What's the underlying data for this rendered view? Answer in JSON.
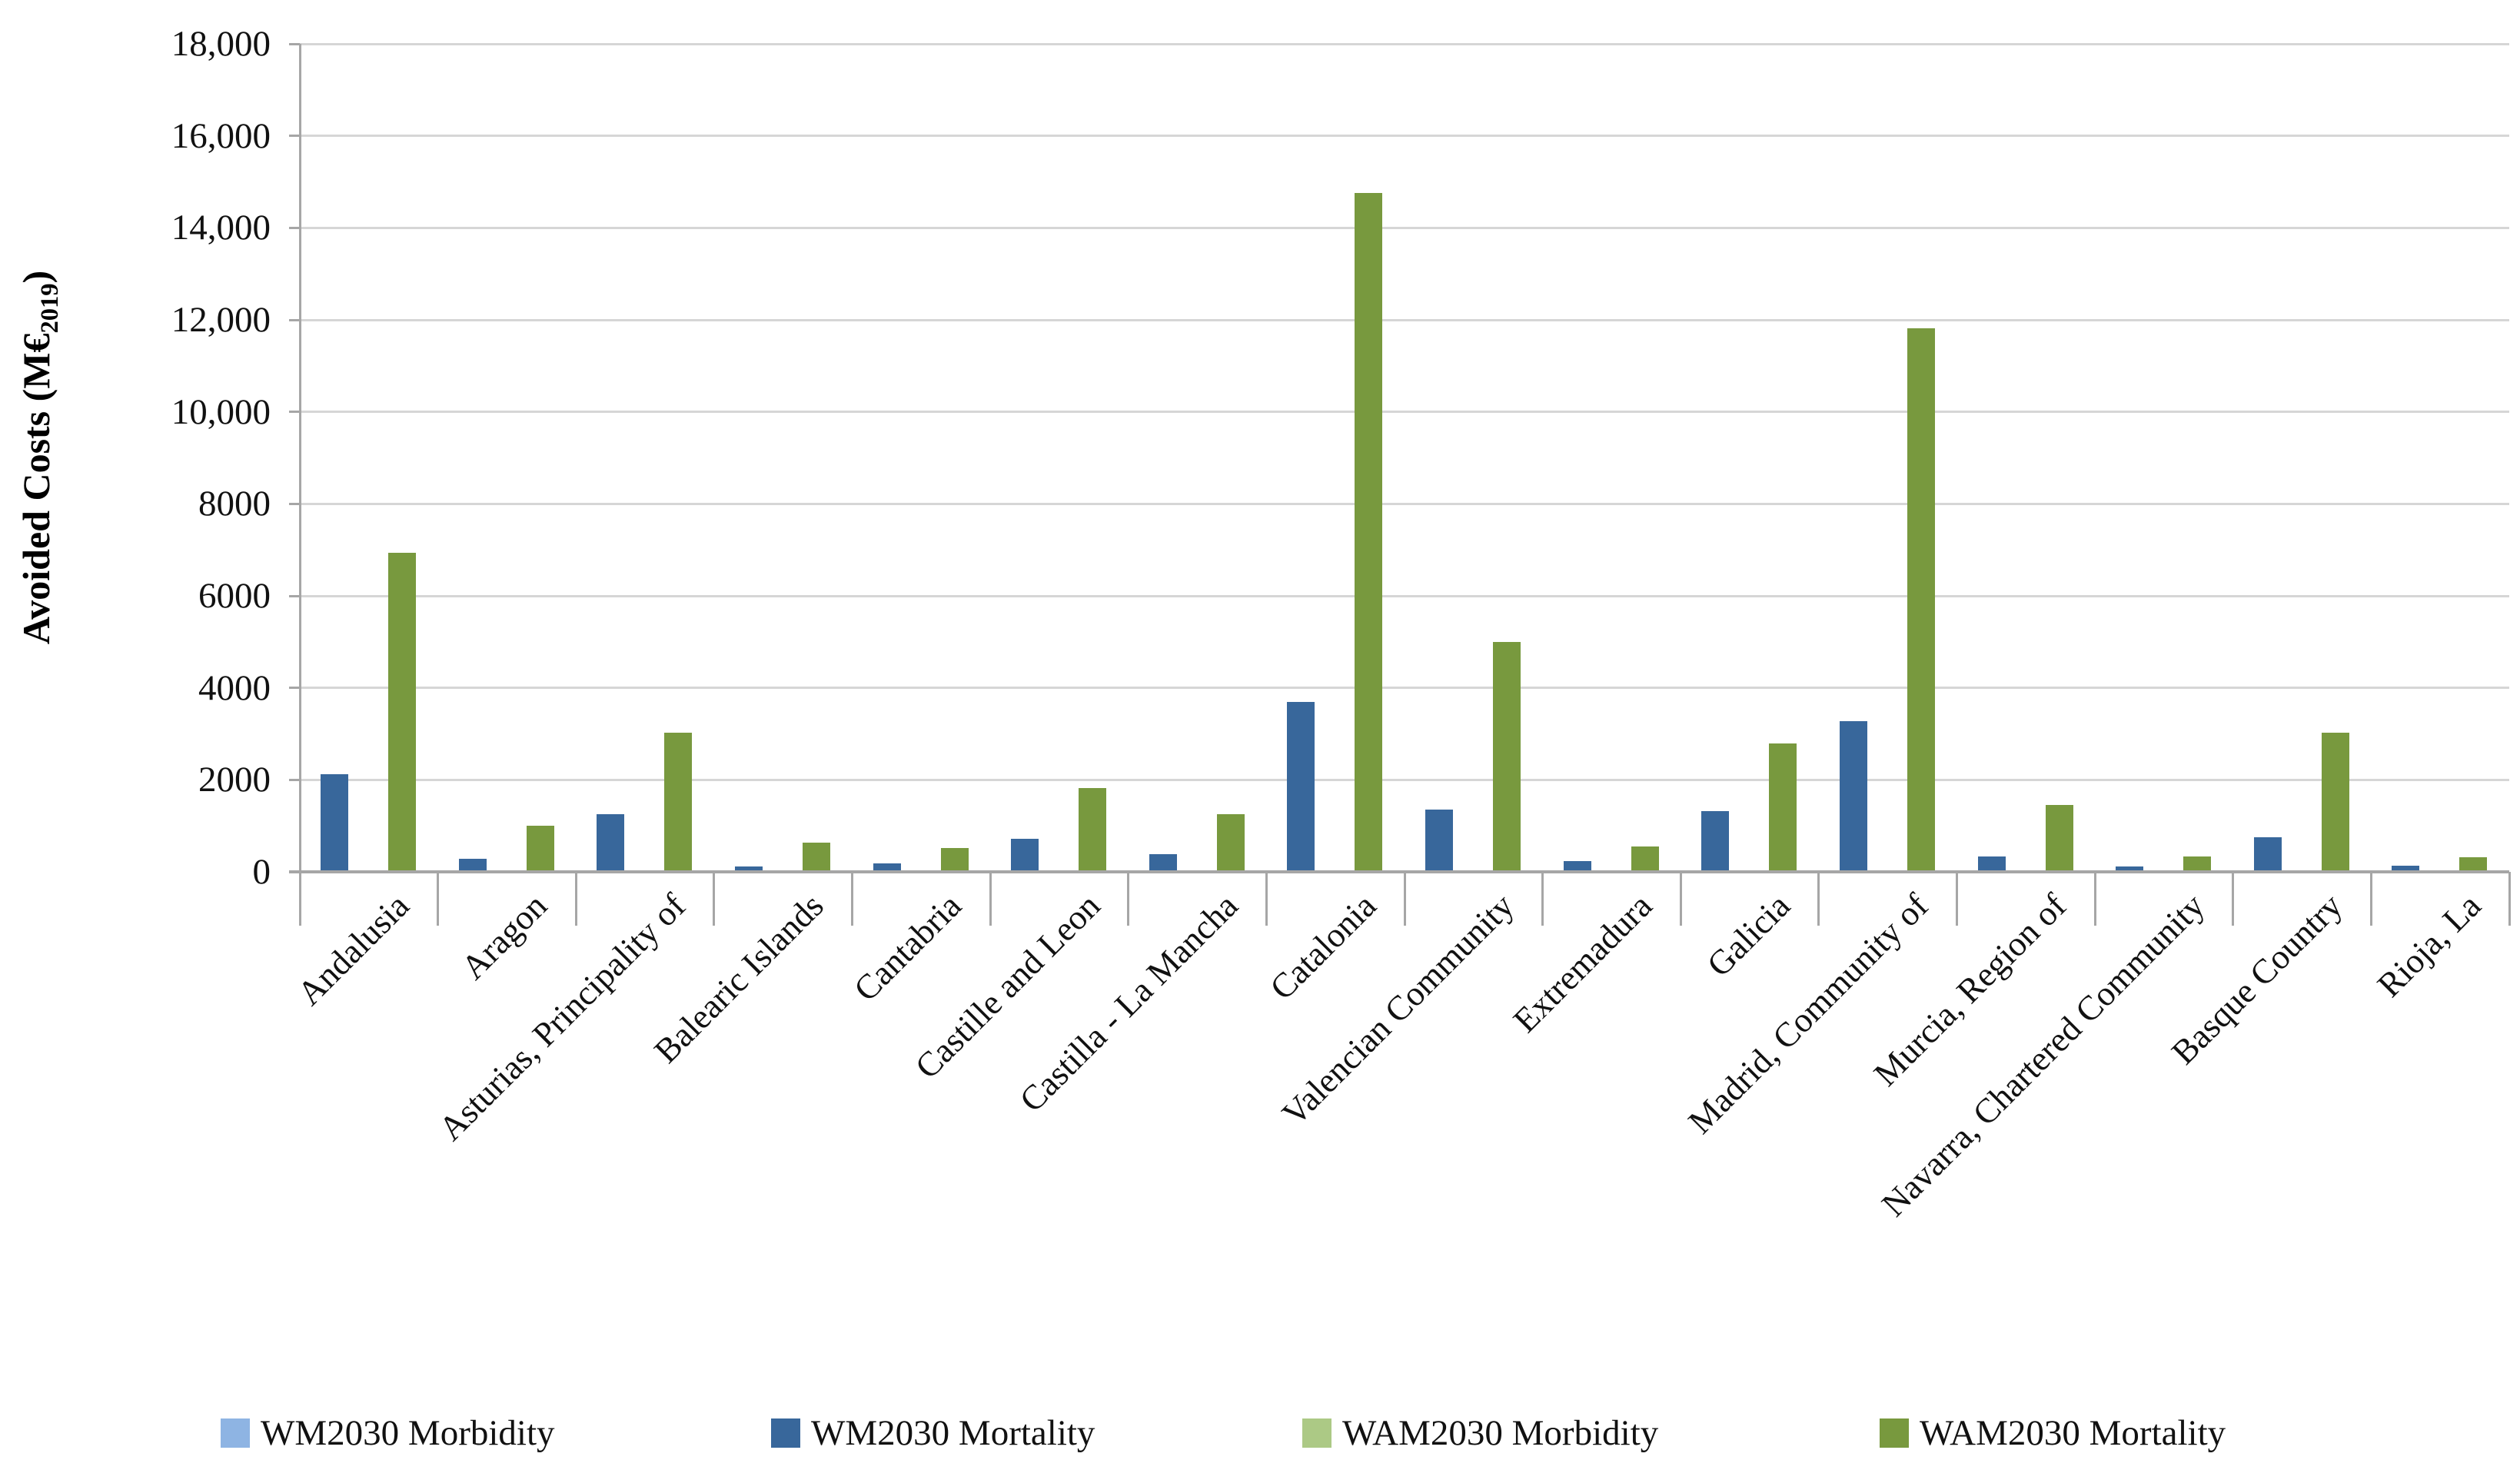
{
  "chart_data": {
    "type": "bar",
    "subtype": "clustered-stacked-columns",
    "title": "",
    "ylabel_prefix": "Avoided Costs (M€",
    "ylabel_sub": "2019",
    "ylabel_suffix": ")",
    "ylim": [
      0,
      18000
    ],
    "y_tick_interval": 2000,
    "y_ticks": [
      {
        "value": 0,
        "label": "0"
      },
      {
        "value": 2000,
        "label": "2000"
      },
      {
        "value": 4000,
        "label": "4000"
      },
      {
        "value": 6000,
        "label": "6000"
      },
      {
        "value": 8000,
        "label": "8000"
      },
      {
        "value": 10000,
        "label": "10,000"
      },
      {
        "value": 12000,
        "label": "12,000"
      },
      {
        "value": 14000,
        "label": "14,000"
      },
      {
        "value": 16000,
        "label": "16,000"
      },
      {
        "value": 18000,
        "label": "18,000"
      }
    ],
    "grid": true,
    "legend_position": "bottom",
    "categories": [
      "Andalusia",
      "Aragon",
      "Asturias, Principality of",
      "Balearic Islands",
      "Cantabria",
      "Castille and Leon",
      "Castilla - La Mancha",
      "Catalonia",
      "Valencian Community",
      "Extremadura",
      "Galicia",
      "Madrid, Community of",
      "Murcia, Region of",
      "Navarra, Chartered Community",
      "Basque Country",
      "Rioja, La"
    ],
    "series": [
      {
        "name": "WM2030 Morbidity",
        "stack": "WM",
        "color": "#8eb4e3",
        "values": [
          0,
          0,
          0,
          0,
          0,
          0,
          0,
          0,
          0,
          0,
          0,
          0,
          0,
          0,
          0,
          0
        ]
      },
      {
        "name": "WM2030 Mortality",
        "stack": "WM",
        "color": "#38679b",
        "values": [
          2130,
          290,
          1250,
          110,
          190,
          720,
          390,
          3700,
          1360,
          240,
          1320,
          3270,
          340,
          120,
          760,
          130
        ]
      },
      {
        "name": "WAM2030 Morbidity",
        "stack": "WAM",
        "color": "#acc985",
        "values": [
          450,
          0,
          120,
          0,
          0,
          70,
          0,
          500,
          220,
          0,
          80,
          500,
          0,
          0,
          100,
          0
        ]
      },
      {
        "name": "WAM2030 Mortality",
        "stack": "WAM",
        "color": "#78993e",
        "values": [
          6940,
          1000,
          3020,
          630,
          520,
          1830,
          1250,
          14750,
          4990,
          550,
          2790,
          11820,
          1450,
          340,
          3020,
          310
        ]
      }
    ],
    "stack_totals_note": {
      "WM_totals": [
        2130,
        290,
        1250,
        110,
        190,
        720,
        390,
        3700,
        1360,
        240,
        1320,
        3270,
        340,
        120,
        760,
        130
      ],
      "WAM_totals": [
        7390,
        1000,
        3140,
        630,
        520,
        1900,
        1250,
        15250,
        5210,
        550,
        2870,
        12320,
        1450,
        340,
        3120,
        310
      ]
    }
  },
  "colors": {
    "gridline": "#d6d6d6",
    "axis": "#a6a6a6",
    "text": "#111111",
    "background": "#ffffff",
    "wm_morbidity": "#8eb4e3",
    "wm_mortality": "#38679b",
    "wam_morbidity": "#acc985",
    "wam_mortality": "#78993e"
  }
}
